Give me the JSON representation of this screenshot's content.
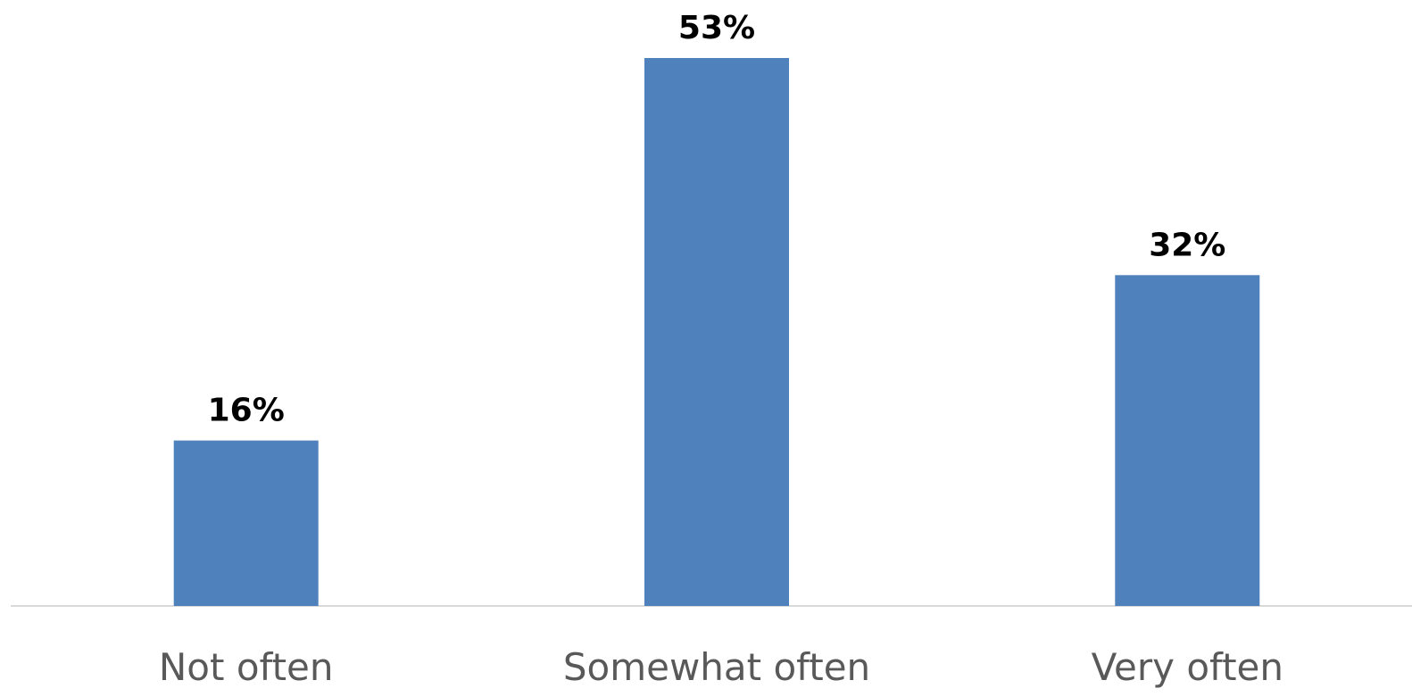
{
  "chart_data": {
    "type": "bar",
    "categories": [
      "Not often",
      "Somewhat often",
      "Very often"
    ],
    "values": [
      16,
      53,
      32
    ],
    "data_labels": [
      "16%",
      "53%",
      "32%"
    ],
    "ylim": [
      0,
      53
    ],
    "grid": false,
    "legend": "none",
    "colors": {
      "bar": "#4F81BD",
      "axis": "#D9D9D9",
      "category_text": "#595959",
      "data_label_text": "#000000"
    }
  }
}
